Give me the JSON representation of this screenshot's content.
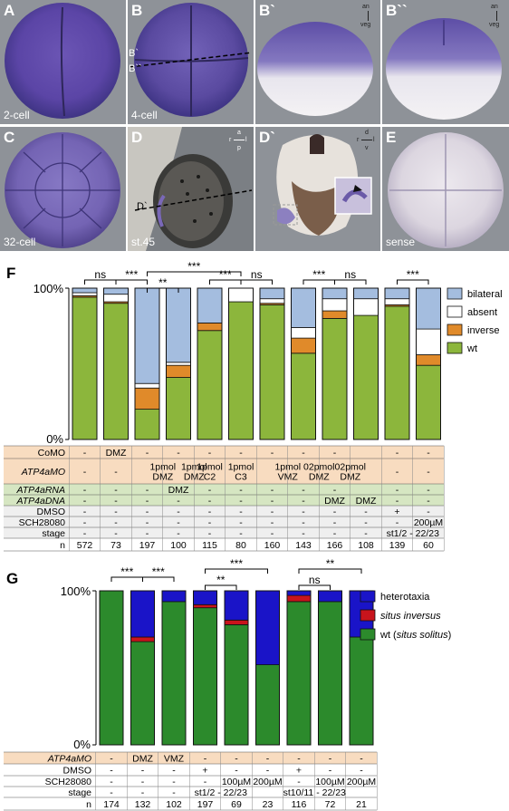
{
  "panels": {
    "A": {
      "label": "A",
      "sublabel": "2-cell"
    },
    "B": {
      "label": "B",
      "sublabel": "4-cell",
      "line_b1": "B`",
      "line_b2": "B``"
    },
    "B1": {
      "label": "B`",
      "axis_top": "an",
      "axis_bottom": "veg"
    },
    "B2": {
      "label": "B``",
      "axis_top": "an",
      "axis_bottom": "veg"
    },
    "C": {
      "label": "C",
      "sublabel": "32-cell"
    },
    "D": {
      "label": "D",
      "sublabel": "st.45",
      "line": "D`",
      "axis_top": "a",
      "axis_left": "r",
      "axis_right": "l",
      "axis_bottom": "p"
    },
    "D1": {
      "label": "D`",
      "axis_top": "d",
      "axis_left": "r",
      "axis_right": "l",
      "axis_bottom": "v"
    },
    "E": {
      "label": "E",
      "sublabel": "sense"
    }
  },
  "colors": {
    "bilateral": "#a4bddf",
    "absent": "#ffffff",
    "inverse": "#e08a2a",
    "wt": "#8cb63c",
    "heterotaxia": "#1a14c8",
    "situs_inversus": "#c8141c",
    "wt_solitus": "#2c8a2c",
    "cell_orange": "#f8dcc0",
    "cell_green": "#d6e6c2",
    "cell_grey": "#efefef",
    "stain": "#6f5aa8"
  },
  "chart_data": [
    {
      "type": "bar",
      "panel": "F",
      "stacked": true,
      "ylabel_top": "100%",
      "ylabel_bottom": "0%",
      "ylim": [
        0,
        100
      ],
      "legend": [
        {
          "key": "bilateral",
          "label": "bilateral"
        },
        {
          "key": "absent",
          "label": "absent"
        },
        {
          "key": "inverse",
          "label": "inverse"
        },
        {
          "key": "wt",
          "label": "wt"
        }
      ],
      "bars": [
        {
          "wt": 94,
          "inverse": 1,
          "absent": 2,
          "bilateral": 3
        },
        {
          "wt": 90,
          "inverse": 1,
          "absent": 5,
          "bilateral": 4
        },
        {
          "wt": 20,
          "inverse": 14,
          "absent": 3,
          "bilateral": 63
        },
        {
          "wt": 41,
          "inverse": 8,
          "absent": 2,
          "bilateral": 49
        },
        {
          "wt": 72,
          "inverse": 5,
          "absent": 0,
          "bilateral": 23
        },
        {
          "wt": 91,
          "inverse": 0,
          "absent": 9,
          "bilateral": 0
        },
        {
          "wt": 89,
          "inverse": 1,
          "absent": 3,
          "bilateral": 7
        },
        {
          "wt": 57,
          "inverse": 10,
          "absent": 7,
          "bilateral": 26
        },
        {
          "wt": 80,
          "inverse": 5,
          "absent": 8,
          "bilateral": 7
        },
        {
          "wt": 82,
          "inverse": 0,
          "absent": 11,
          "bilateral": 7
        },
        {
          "wt": 88,
          "inverse": 1,
          "absent": 4,
          "bilateral": 7
        },
        {
          "wt": 49,
          "inverse": 7,
          "absent": 17,
          "bilateral": 27
        }
      ],
      "significance": [
        {
          "from": 0,
          "to": 1,
          "label": "ns",
          "level": 1
        },
        {
          "from": 1,
          "to": 2,
          "label": "***",
          "level": 1
        },
        {
          "from": 2,
          "to": 3,
          "label": "**",
          "level": 0
        },
        {
          "from": 2,
          "to": 5,
          "label": "***",
          "level": 2
        },
        {
          "from": 4,
          "to": 5,
          "label": "***",
          "level": 1
        },
        {
          "from": 5,
          "to": 6,
          "label": "ns",
          "level": 1
        },
        {
          "from": 7,
          "to": 8,
          "label": "***",
          "level": 1
        },
        {
          "from": 8,
          "to": 9,
          "label": "ns",
          "level": 1
        },
        {
          "from": 10,
          "to": 11,
          "label": "***",
          "level": 1
        }
      ],
      "table": [
        {
          "label": "CoMO",
          "italic": false,
          "color": "orange",
          "cells": [
            "-",
            "DMZ",
            "-",
            "-",
            "-",
            "-",
            "-",
            "-",
            "-",
            "",
            "-",
            "-"
          ]
        },
        {
          "label": "ATP4aMO",
          "italic": true,
          "color": "orange",
          "cells": [
            "-",
            "-",
            "1pmol\nDMZ",
            "1pmol\nDMZ",
            "1pmol\nC2",
            "1pmol\nC3",
            "1pmol\nVMZ",
            "02pmol\nDMZ",
            "02pmol\nDMZ",
            "",
            "-",
            "-"
          ]
        },
        {
          "label": "ATP4aRNA",
          "italic": true,
          "color": "green",
          "cells": [
            "-",
            "-",
            "-",
            "DMZ",
            "-",
            "-",
            "-",
            "-",
            "-",
            "",
            "-",
            "-"
          ]
        },
        {
          "label": "ATP4aDNA",
          "italic": true,
          "color": "green",
          "cells": [
            "-",
            "-",
            "-",
            "-",
            "-",
            "-",
            "-",
            "-",
            "DMZ",
            "DMZ",
            "-",
            "-"
          ]
        },
        {
          "label": "DMSO",
          "italic": false,
          "color": "grey",
          "cells": [
            "-",
            "-",
            "-",
            "-",
            "-",
            "-",
            "-",
            "-",
            "-",
            "-",
            "+",
            "-"
          ]
        },
        {
          "label": "SCH28080",
          "italic": false,
          "color": "grey",
          "cells": [
            "-",
            "-",
            "-",
            "-",
            "-",
            "-",
            "-",
            "-",
            "-",
            "-",
            "-",
            "200µM"
          ]
        },
        {
          "label": "stage",
          "italic": false,
          "color": "grey",
          "cells": [
            "-",
            "-",
            "-",
            "-",
            "-",
            "-",
            "-",
            "-",
            "-",
            "-",
            "st1/2 - 22/23",
            ""
          ]
        },
        {
          "label": "n",
          "italic": false,
          "color": "white",
          "cells": [
            "572",
            "73",
            "197",
            "100",
            "115",
            "80",
            "160",
            "143",
            "166",
            "108",
            "139",
            "60"
          ]
        }
      ]
    },
    {
      "type": "bar",
      "panel": "G",
      "stacked": true,
      "ylabel_top": "100%",
      "ylabel_bottom": "0%",
      "ylim": [
        0,
        100
      ],
      "legend": [
        {
          "key": "heterotaxia",
          "label": "heterotaxia",
          "italic_part": ""
        },
        {
          "key": "situs_inversus",
          "label": "situs inversus",
          "italic_part": "all"
        },
        {
          "key": "wt_solitus",
          "label": "wt (situs solitus)",
          "italic_part": "situs solitus"
        }
      ],
      "bars": [
        {
          "wt_solitus": 100,
          "situs_inversus": 0,
          "heterotaxia": 0
        },
        {
          "wt_solitus": 67,
          "situs_inversus": 3,
          "heterotaxia": 30
        },
        {
          "wt_solitus": 93,
          "situs_inversus": 0,
          "heterotaxia": 7
        },
        {
          "wt_solitus": 89,
          "situs_inversus": 2,
          "heterotaxia": 9
        },
        {
          "wt_solitus": 78,
          "situs_inversus": 3,
          "heterotaxia": 19
        },
        {
          "wt_solitus": 52,
          "situs_inversus": 0,
          "heterotaxia": 48
        },
        {
          "wt_solitus": 93,
          "situs_inversus": 4,
          "heterotaxia": 3
        },
        {
          "wt_solitus": 93,
          "situs_inversus": 0,
          "heterotaxia": 7
        },
        {
          "wt_solitus": 70,
          "situs_inversus": 0,
          "heterotaxia": 30
        }
      ],
      "significance": [
        {
          "from": 0,
          "to": 1,
          "label": "***",
          "level": 1
        },
        {
          "from": 1,
          "to": 2,
          "label": "***",
          "level": 1
        },
        {
          "from": 3,
          "to": 4,
          "label": "**",
          "level": 0
        },
        {
          "from": 3,
          "to": 5,
          "label": "***",
          "level": 2
        },
        {
          "from": 6,
          "to": 7,
          "label": "ns",
          "level": 0
        },
        {
          "from": 6,
          "to": 8,
          "label": "**",
          "level": 2
        }
      ],
      "table": [
        {
          "label": "ATP4aMO",
          "italic": true,
          "color": "orange",
          "cells": [
            "-",
            "DMZ",
            "VMZ",
            "-",
            "-",
            "-",
            "-",
            "-",
            "-"
          ]
        },
        {
          "label": "DMSO",
          "italic": false,
          "color": "white",
          "cells": [
            "-",
            "-",
            "-",
            "+",
            "-",
            "-",
            "+",
            "-",
            "-"
          ]
        },
        {
          "label": "SCH28080",
          "italic": false,
          "color": "white",
          "cells": [
            "-",
            "-",
            "-",
            "-",
            "100µM",
            "200µM",
            "-",
            "100µM",
            "200µM"
          ]
        },
        {
          "label": "stage",
          "italic": false,
          "color": "white",
          "cells": [
            "-",
            "-",
            "-",
            "st1/2 - 22/23",
            "",
            "",
            "st10/11 - 22/23",
            "",
            ""
          ]
        },
        {
          "label": "n",
          "italic": false,
          "color": "white",
          "cells": [
            "174",
            "132",
            "102",
            "197",
            "69",
            "23",
            "116",
            "72",
            "21"
          ]
        }
      ]
    }
  ],
  "figure_labels": {
    "F": "F",
    "G": "G"
  }
}
